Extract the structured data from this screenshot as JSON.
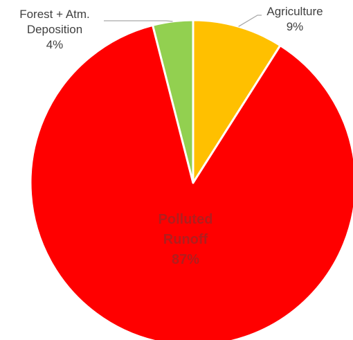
{
  "chart_data": {
    "type": "pie",
    "slices": [
      {
        "label": "Agriculture",
        "value": 9,
        "value_label": "9%",
        "color": "#FFC000"
      },
      {
        "label": "Polluted Runoff",
        "value": 87,
        "value_label": "87%",
        "color": "#FF0000"
      },
      {
        "label": "Forest + Atm. Deposition",
        "value": 4,
        "value_label": "4%",
        "color": "#92D050"
      }
    ],
    "start_angle_deg": 0,
    "direction": "clockwise",
    "slice_border_color": "#FFFFFF",
    "legend": "none",
    "data_labels": {
      "agriculture": {
        "line1": "Agriculture",
        "line2": "9%"
      },
      "runoff": {
        "line1": "Polluted",
        "line2": "Runoff",
        "line3": "87%"
      },
      "forest": {
        "line1": "Forest + Atm.",
        "line2": "Deposition",
        "line3": "4%"
      }
    }
  }
}
